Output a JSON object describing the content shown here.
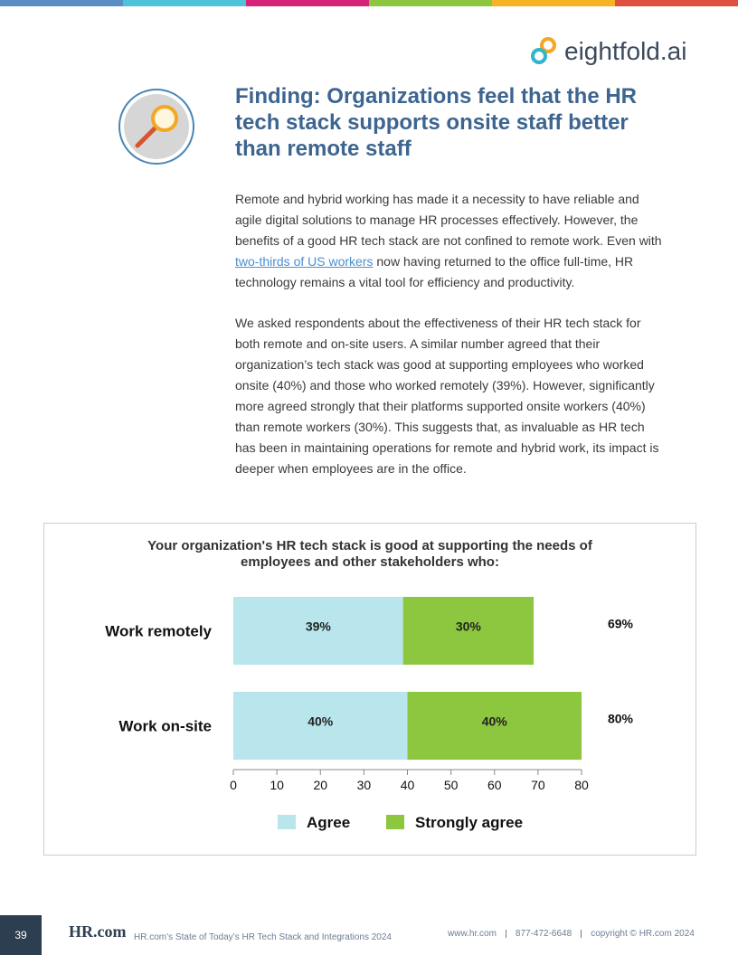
{
  "header": {
    "logo": "eightfold.ai"
  },
  "heading": "Finding: Organizations feel that the HR tech stack supports onsite staff better than remote staff",
  "body": {
    "paragraphs": [
      {
        "before": "Remote and hybrid working has made it a necessity to have reliable and agile digital solutions to manage HR processes effectively. However, the benefits of a good HR tech stack are not confined to remote work. Even with ",
        "link": "two-thirds of US workers",
        "after": " now having returned to the office full-time, HR technology remains a vital tool for efficiency and productivity."
      },
      {
        "before": "We asked respondents about the effectiveness of their HR tech stack for both remote and on-site users. A similar number agreed that their organization’s tech stack was good at supporting employees who worked onsite (40%) and those who worked remotely (39%). However, significantly more agreed strongly that their platforms supported onsite workers (40%) than remote workers (30%). This suggests that, as invaluable as HR tech has been in maintaining operations for remote and hybrid work, its impact is deeper when employees are in the office."
      }
    ]
  },
  "chart_data": {
    "type": "bar",
    "orientation": "horizontal",
    "stacked": true,
    "title": "Your organization's HR tech stack is good at supporting the needs of employees and other stakeholders who:",
    "categories": [
      "Work remotely",
      "Work on-site"
    ],
    "series": [
      {
        "name": "Agree",
        "color": "#b9e5ed",
        "values": [
          39,
          40
        ],
        "value_labels": [
          "39%",
          "40%"
        ]
      },
      {
        "name": "Strongly agree",
        "color": "#8dc63f",
        "values": [
          30,
          40
        ],
        "value_labels": [
          "30%",
          "40%"
        ]
      }
    ],
    "totals": [
      69,
      80
    ],
    "total_labels": [
      "69%",
      "80%"
    ],
    "xlim": [
      0,
      80
    ],
    "xticks": [
      0,
      10,
      20,
      30,
      40,
      50,
      60,
      70,
      80
    ],
    "legend": "bottom"
  },
  "footer": {
    "page": "39",
    "logo": "HR.com",
    "report": "HR.com’s State of Today’s HR Tech Stack and Integrations 2024",
    "website": "www.hr.com",
    "phone": "877-472-6648",
    "copyright": "copyright © HR.com 2024"
  }
}
